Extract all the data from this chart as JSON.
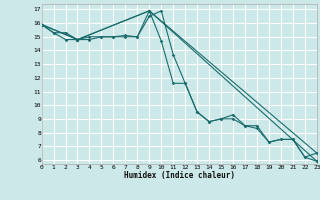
{
  "title": "",
  "xlabel": "Humidex (Indice chaleur)",
  "ylabel": "",
  "background_color": "#cce8e8",
  "plot_bg_color": "#cce8e8",
  "grid_color": "#ffffff",
  "line_color": "#1a6b6b",
  "xlim": [
    0,
    23
  ],
  "ylim": [
    5.7,
    17.4
  ],
  "xticks": [
    0,
    1,
    2,
    3,
    4,
    5,
    6,
    7,
    8,
    9,
    10,
    11,
    12,
    13,
    14,
    15,
    16,
    17,
    18,
    19,
    20,
    21,
    22,
    23
  ],
  "yticks": [
    6,
    7,
    8,
    9,
    10,
    11,
    12,
    13,
    14,
    15,
    16,
    17
  ],
  "series": [
    {
      "x": [
        0,
        1,
        2,
        3,
        4,
        5,
        6,
        7,
        8,
        9,
        10,
        11,
        12,
        13,
        14,
        15,
        16,
        17,
        18,
        19,
        20,
        21,
        22,
        23
      ],
      "y": [
        15.9,
        15.3,
        15.3,
        14.8,
        14.8,
        15.0,
        15.0,
        15.1,
        15.0,
        16.5,
        16.9,
        13.7,
        11.6,
        9.5,
        8.8,
        9.0,
        9.0,
        8.5,
        8.5,
        7.3,
        7.5,
        7.5,
        6.2,
        6.5
      ]
    },
    {
      "x": [
        0,
        1,
        2,
        3,
        4,
        5,
        6,
        7,
        8,
        9,
        10,
        11,
        12,
        13,
        14,
        15,
        16,
        17,
        18,
        19,
        20,
        21,
        22,
        23
      ],
      "y": [
        15.9,
        15.3,
        14.8,
        14.8,
        15.0,
        15.0,
        15.0,
        15.0,
        15.0,
        16.9,
        14.7,
        11.6,
        11.6,
        9.5,
        8.8,
        9.0,
        9.3,
        8.5,
        8.3,
        7.3,
        7.5,
        7.5,
        6.2,
        5.9
      ]
    },
    {
      "x": [
        0,
        3,
        9,
        23
      ],
      "y": [
        15.9,
        14.8,
        16.9,
        5.9
      ]
    },
    {
      "x": [
        0,
        3,
        9,
        23
      ],
      "y": [
        15.9,
        14.8,
        16.9,
        6.5
      ]
    }
  ]
}
